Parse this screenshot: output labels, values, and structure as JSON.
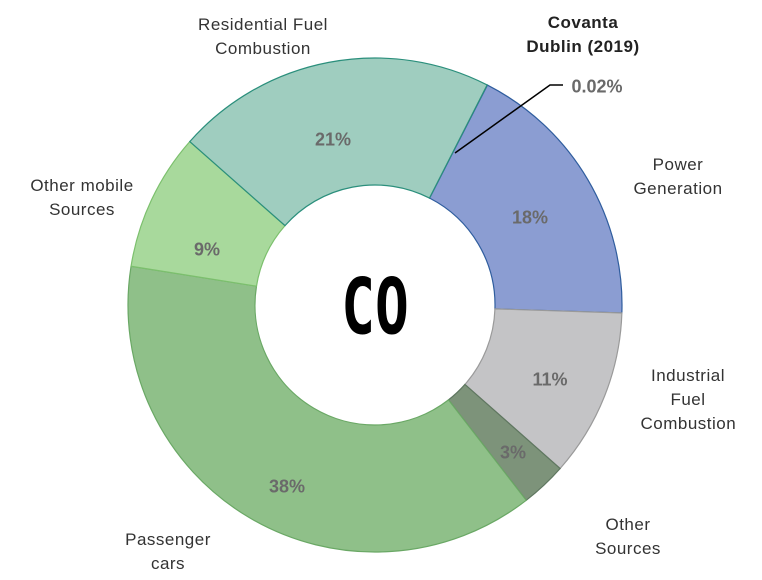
{
  "chart_data": {
    "type": "pie",
    "center_label": "CO",
    "categories": [
      "Covanta Dublin (2019)",
      "Power Generation",
      "Industrial Fuel Combustion",
      "Other Sources",
      "Passenger cars",
      "Other mobile Sources",
      "Residential Fuel Combustion"
    ],
    "values": [
      0.02,
      18,
      11,
      3,
      38,
      9,
      21
    ],
    "value_labels": [
      "0.02%",
      "18%",
      "11%",
      "3%",
      "38%",
      "9%",
      "21%"
    ],
    "colors": [
      "#1f3f8f",
      "#8b9dd2",
      "#c4c4c6",
      "#7d937a",
      "#8fc089",
      "#a8d99c",
      "#9fcdbf"
    ],
    "stroke_colors": [
      "#1f3f8f",
      "#2f5d9e",
      "#9a9a9a",
      "#5f7760",
      "#6aa865",
      "#7cc06d",
      "#2b8f7c"
    ]
  }
}
